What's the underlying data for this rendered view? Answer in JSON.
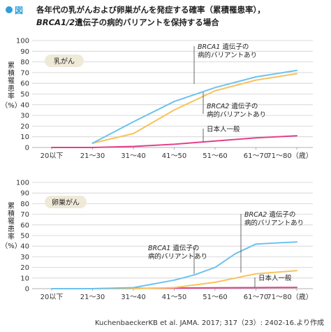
{
  "figure": {
    "label": "図",
    "title_line1": "各年代の乳がんおよび卵巣がんを発症する確率（累積罹患率），",
    "title_line2_italic": "BRCA1/2",
    "title_line2_rest": "遺伝子の病的バリアントを保持する場合",
    "source": "KuchenbaeckerKB et al. JAMA. 2017; 317（23）: 2402-16.より作成",
    "colors": {
      "brca1": "#6dc2ef",
      "brca2": "#f9c25a",
      "general": "#e2408a",
      "accent": "#2f9fd8",
      "panel_label_bg": "#efe9d8",
      "grid": "#cfcfcf"
    }
  },
  "chart_data": [
    {
      "type": "line",
      "panel_label": "乳がん",
      "ylabel_chars": [
        "累",
        "積",
        "罹",
        "患",
        "率"
      ],
      "ylabel_unit": "（%）",
      "ylim": [
        0,
        100
      ],
      "yticks": [
        "0",
        "10",
        "20",
        "30",
        "40",
        "50",
        "60",
        "70",
        "80",
        "90",
        "100"
      ],
      "categories": [
        "20以下",
        "21〜30",
        "31〜40",
        "41〜50",
        "51〜60",
        "61〜70",
        "71〜80（歳）"
      ],
      "grid": true,
      "series": [
        {
          "key": "brca1",
          "name_italic": "BRCA1",
          "name_rest": "遺伝子の",
          "name_line2": "病的バリアントあり",
          "x": [
            1,
            2,
            3,
            4,
            5,
            6
          ],
          "values": [
            4,
            24,
            43,
            56,
            66,
            72
          ]
        },
        {
          "key": "brca2",
          "name_italic": "BRCA2",
          "name_rest": "遺伝子の",
          "name_line2": "病的バリアントあり",
          "x": [
            1,
            2,
            3,
            4,
            5,
            6
          ],
          "values": [
            4,
            13,
            35,
            53,
            63,
            69
          ]
        },
        {
          "key": "general",
          "name": "日本人一般",
          "x": [
            0,
            1,
            2,
            3,
            4,
            5,
            6
          ],
          "values": [
            0,
            0,
            1,
            3,
            6,
            9,
            11
          ]
        }
      ]
    },
    {
      "type": "line",
      "panel_label": "卵巣がん",
      "ylabel_chars": [
        "累",
        "積",
        "罹",
        "患",
        "率"
      ],
      "ylabel_unit": "（%）",
      "ylim": [
        0,
        100
      ],
      "yticks": [
        "0",
        "10",
        "20",
        "30",
        "40",
        "50",
        "60",
        "70",
        "80",
        "90",
        "100"
      ],
      "categories": [
        "20以下",
        "21〜30",
        "31〜40",
        "41〜50",
        "51〜60",
        "61〜70",
        "71〜80（歳）"
      ],
      "grid": true,
      "series": [
        {
          "key": "brca1",
          "name_italic": "BRCA1",
          "name_rest": "遺伝子の",
          "name_line2": "病的バリアントあり",
          "x": [
            0,
            1,
            2,
            3,
            3.5,
            4,
            4.5,
            5,
            6
          ],
          "values": [
            0,
            0,
            1,
            8,
            13,
            20,
            33,
            42,
            44
          ]
        },
        {
          "key": "brca2",
          "name_italic": "BRCA2",
          "name_rest": "遺伝子の",
          "name_line2": "病的バリアントあり",
          "x": [
            0,
            1,
            2,
            3,
            4,
            5,
            6
          ],
          "values": [
            0,
            0,
            0,
            1,
            6,
            14,
            17
          ]
        },
        {
          "key": "general",
          "name": "日本人一般",
          "x": [
            0,
            1,
            2,
            3,
            4,
            5,
            6
          ],
          "values": [
            0,
            0,
            0.3,
            0.5,
            0.8,
            1,
            1.2
          ]
        }
      ]
    }
  ]
}
